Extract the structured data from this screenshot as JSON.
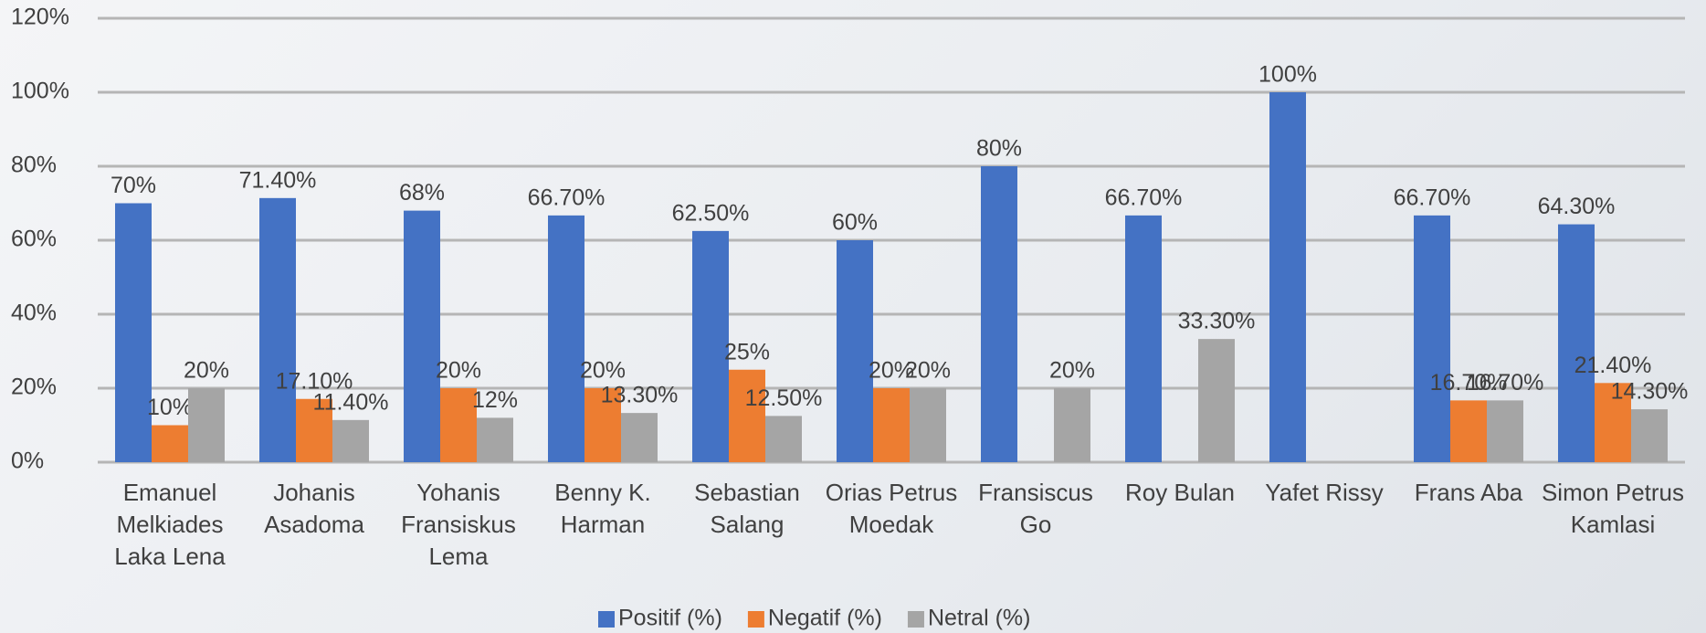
{
  "chart_data": {
    "type": "bar",
    "categories": [
      "Emanuel Melkiades Laka Lena",
      "Johanis Asadoma",
      "Yohanis Fransiskus Lema",
      "Benny K. Harman",
      "Sebastian Salang",
      "Orias Petrus Moedak",
      "Fransiscus Go",
      "Roy Bulan",
      "Yafet Rissy",
      "Frans Aba",
      "Simon Petrus Kamlasi"
    ],
    "series": [
      {
        "name": "Positif (%)",
        "color": "#4472c4",
        "values": [
          70,
          71.4,
          68,
          66.7,
          62.5,
          60,
          80,
          66.7,
          100,
          66.7,
          64.3
        ],
        "value_labels": [
          "70%",
          "71.40%",
          "68%",
          "66.70%",
          "62.50%",
          "60%",
          "80%",
          "66.70%",
          "100%",
          "66.70%",
          "64.30%"
        ]
      },
      {
        "name": "Negatif (%)",
        "color": "#ed7d31",
        "values": [
          10,
          17.1,
          20,
          20,
          25,
          20,
          null,
          null,
          null,
          16.7,
          21.4
        ],
        "value_labels": [
          "10%",
          "17.10%",
          "20%",
          "20%",
          "25%",
          "20%",
          null,
          null,
          null,
          "16.70%",
          "21.40%"
        ]
      },
      {
        "name": "Netral (%)",
        "color": "#a5a5a5",
        "values": [
          20,
          11.4,
          12,
          13.3,
          12.5,
          20,
          20,
          33.3,
          null,
          16.7,
          14.3
        ],
        "value_labels": [
          "20%",
          "11.40%",
          "12%",
          "13.30%",
          "12.50%",
          "20%",
          "20%",
          "33.30%",
          null,
          "16.70%",
          "14.30%"
        ]
      }
    ],
    "ylim": [
      0,
      120
    ],
    "yticks": [
      {
        "value": 0,
        "label": "0%"
      },
      {
        "value": 20,
        "label": "20%"
      },
      {
        "value": 40,
        "label": "40%"
      },
      {
        "value": 60,
        "label": "60%"
      },
      {
        "value": 80,
        "label": "80%"
      },
      {
        "value": 100,
        "label": "100%"
      },
      {
        "value": 120,
        "label": "120%"
      }
    ],
    "grid": true,
    "legend": "bottom"
  }
}
